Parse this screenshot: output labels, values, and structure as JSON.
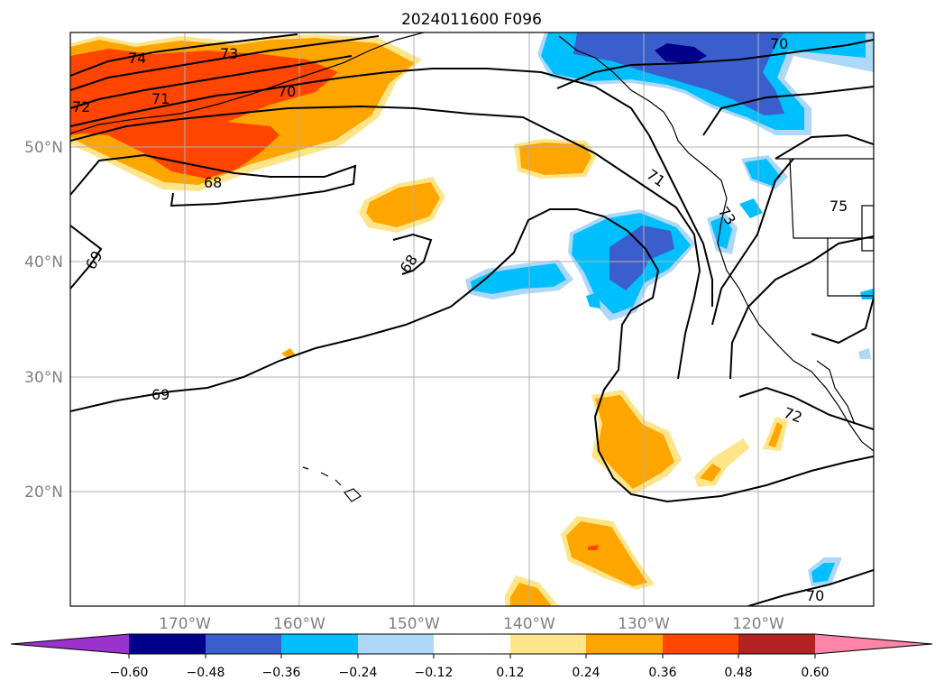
{
  "title": "2024011600 F096",
  "map": {
    "lat_labels": [
      "50°N",
      "40°N",
      "30°N",
      "20°N"
    ],
    "lon_labels": [
      "170°W",
      "160°W",
      "150°W",
      "140°W",
      "130°W",
      "120°W"
    ]
  },
  "contour_labels": [
    "74",
    "73",
    "72",
    "71",
    "70",
    "68",
    "69",
    "68",
    "69",
    "71",
    "73",
    "75",
    "72",
    "70",
    "70"
  ],
  "colorbar": {
    "ticks": [
      "−0.60",
      "−0.48",
      "−0.36",
      "−0.24",
      "−0.12",
      "0.12",
      "0.24",
      "0.36",
      "0.48",
      "0.60"
    ],
    "colors": [
      "#9933cc",
      "#00008b",
      "#3a5fcd",
      "#00bfff",
      "#add8f7",
      "#ffffff",
      "#ffe58a",
      "#ffa500",
      "#ff4500",
      "#b22222",
      "#ff85a8"
    ]
  },
  "colors": {
    "orange_light": "#ffe58a",
    "orange": "#ffa500",
    "orange_red": "#ff4500",
    "blue_light": "#add8f7",
    "blue": "#00bfff",
    "blue_mid": "#3a5fcd",
    "blue_dark": "#00008b"
  }
}
